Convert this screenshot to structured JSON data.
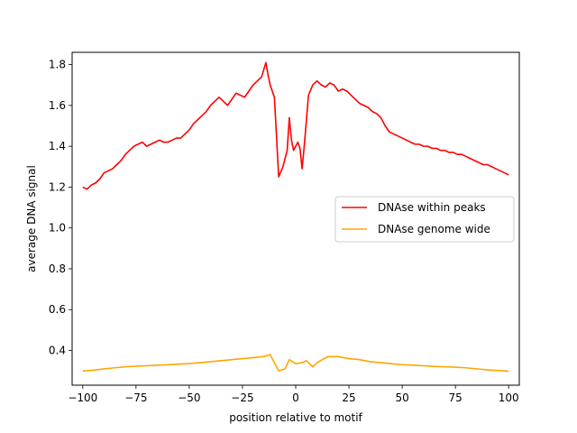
{
  "chart_data": {
    "type": "line",
    "title": "",
    "xlabel": "position relative to motif",
    "ylabel": "average DNA signal",
    "xlim": [
      -105,
      105
    ],
    "ylim": [
      0.23,
      1.86
    ],
    "xticks": [
      -100,
      -75,
      -50,
      -25,
      0,
      25,
      50,
      75,
      100
    ],
    "yticks": [
      0.4,
      0.6,
      0.8,
      1.0,
      1.2,
      1.4,
      1.6,
      1.8
    ],
    "ytick_labels": [
      "0.4",
      "0.6",
      "0.8",
      "1.0",
      "1.2",
      "1.4",
      "1.6",
      "1.8"
    ],
    "grid": false,
    "legend": {
      "placement": "center-right"
    },
    "series": [
      {
        "name": "DNAse within peaks",
        "color": "#ff0000",
        "x": [
          -100,
          -98,
          -96,
          -94,
          -92,
          -90,
          -88,
          -86,
          -84,
          -82,
          -80,
          -78,
          -76,
          -74,
          -72,
          -70,
          -68,
          -66,
          -64,
          -62,
          -60,
          -58,
          -56,
          -54,
          -52,
          -50,
          -48,
          -46,
          -44,
          -42,
          -40,
          -38,
          -36,
          -34,
          -32,
          -30,
          -28,
          -26,
          -24,
          -22,
          -20,
          -18,
          -16,
          -14,
          -13,
          -12,
          -10,
          -8,
          -6,
          -4,
          -3,
          -2,
          -1,
          0,
          1,
          2,
          3,
          4,
          6,
          8,
          10,
          12,
          14,
          16,
          18,
          20,
          22,
          24,
          26,
          28,
          30,
          32,
          34,
          36,
          38,
          40,
          42,
          44,
          46,
          48,
          50,
          52,
          54,
          56,
          58,
          60,
          62,
          64,
          66,
          68,
          70,
          72,
          74,
          76,
          78,
          80,
          82,
          84,
          86,
          88,
          90,
          92,
          94,
          96,
          98,
          100
        ],
        "values": [
          1.2,
          1.19,
          1.21,
          1.22,
          1.24,
          1.27,
          1.28,
          1.29,
          1.31,
          1.33,
          1.36,
          1.38,
          1.4,
          1.41,
          1.42,
          1.4,
          1.41,
          1.42,
          1.43,
          1.42,
          1.42,
          1.43,
          1.44,
          1.44,
          1.46,
          1.48,
          1.51,
          1.53,
          1.55,
          1.57,
          1.6,
          1.62,
          1.64,
          1.62,
          1.6,
          1.63,
          1.66,
          1.65,
          1.64,
          1.67,
          1.7,
          1.72,
          1.74,
          1.81,
          1.75,
          1.7,
          1.64,
          1.25,
          1.3,
          1.38,
          1.54,
          1.43,
          1.38,
          1.4,
          1.42,
          1.39,
          1.29,
          1.4,
          1.65,
          1.7,
          1.72,
          1.7,
          1.69,
          1.71,
          1.7,
          1.67,
          1.68,
          1.67,
          1.65,
          1.63,
          1.61,
          1.6,
          1.59,
          1.57,
          1.56,
          1.54,
          1.5,
          1.47,
          1.46,
          1.45,
          1.44,
          1.43,
          1.42,
          1.41,
          1.41,
          1.4,
          1.4,
          1.39,
          1.39,
          1.38,
          1.38,
          1.37,
          1.37,
          1.36,
          1.36,
          1.35,
          1.34,
          1.33,
          1.32,
          1.31,
          1.31,
          1.3,
          1.29,
          1.28,
          1.27,
          1.26
        ]
      },
      {
        "name": "DNAse genome wide",
        "color": "#ffa500",
        "x": [
          -100,
          -95,
          -90,
          -85,
          -80,
          -75,
          -70,
          -65,
          -60,
          -55,
          -50,
          -45,
          -40,
          -35,
          -30,
          -25,
          -20,
          -15,
          -12,
          -10,
          -8,
          -5,
          -3,
          0,
          3,
          5,
          8,
          10,
          15,
          20,
          25,
          30,
          35,
          40,
          45,
          50,
          55,
          60,
          65,
          70,
          75,
          80,
          85,
          90,
          95,
          100
        ],
        "values": [
          0.3,
          0.303,
          0.31,
          0.315,
          0.32,
          0.323,
          0.325,
          0.328,
          0.33,
          0.333,
          0.336,
          0.34,
          0.345,
          0.35,
          0.355,
          0.36,
          0.365,
          0.37,
          0.38,
          0.34,
          0.3,
          0.31,
          0.355,
          0.335,
          0.34,
          0.35,
          0.32,
          0.34,
          0.37,
          0.37,
          0.36,
          0.355,
          0.345,
          0.34,
          0.335,
          0.33,
          0.328,
          0.325,
          0.322,
          0.32,
          0.318,
          0.315,
          0.31,
          0.305,
          0.302,
          0.298
        ]
      }
    ]
  }
}
